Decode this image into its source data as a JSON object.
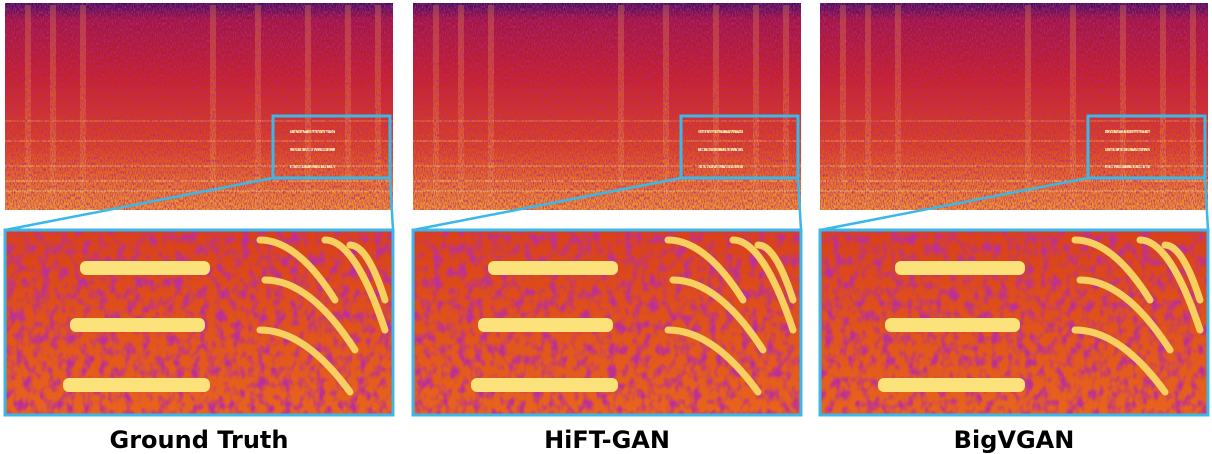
{
  "figure": {
    "panels": [
      {
        "label": "Ground Truth"
      },
      {
        "label": "HiFT-GAN"
      },
      {
        "label": "BigVGAN"
      }
    ]
  }
}
